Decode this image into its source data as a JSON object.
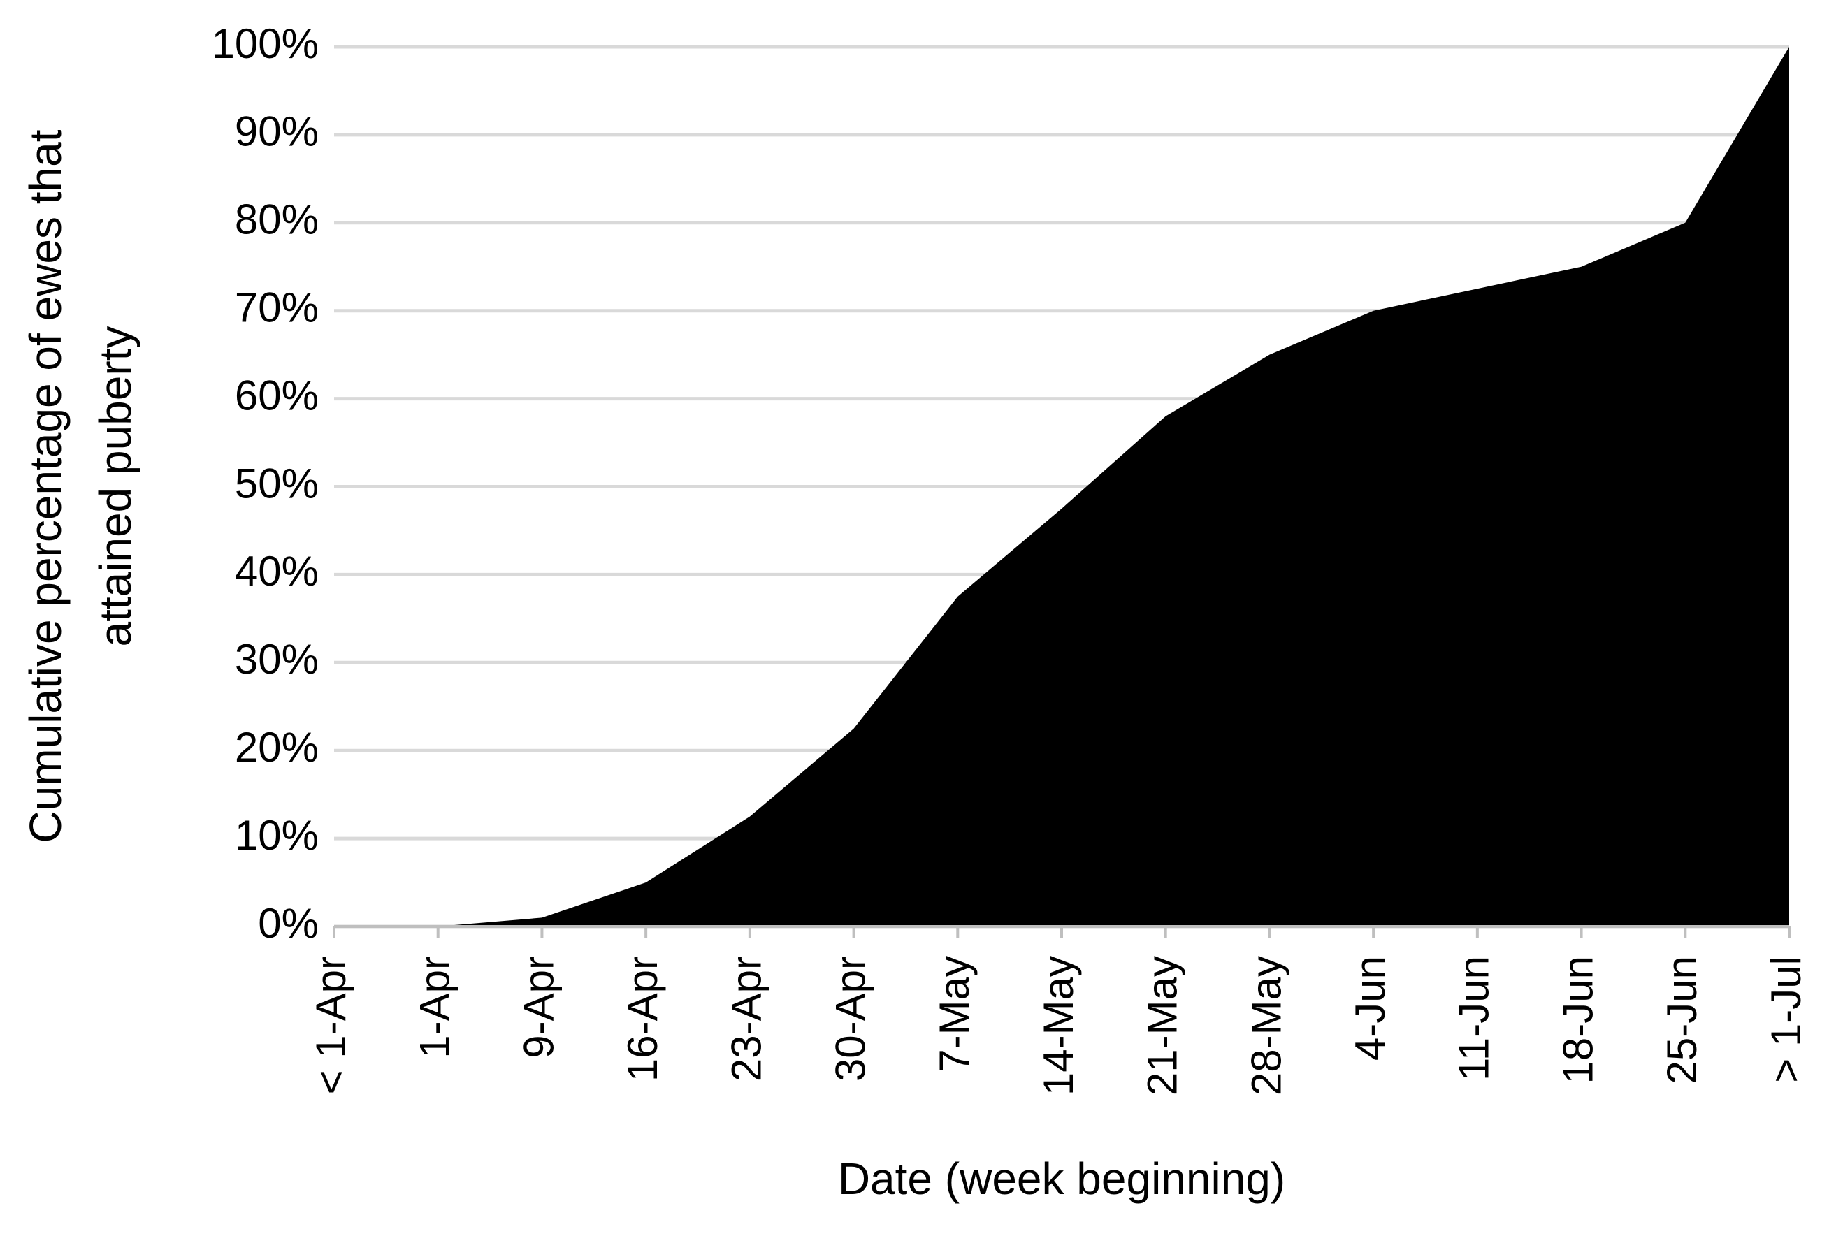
{
  "chart_data": {
    "type": "area",
    "x_label": "Date (week beginning)",
    "y_label": [
      "Cumulative percentage of ewes that",
      "attained puberty"
    ],
    "categories": [
      "< 1-Apr",
      "1-Apr",
      "9-Apr",
      "16-Apr",
      "23-Apr",
      "30-Apr",
      "7-May",
      "14-May",
      "21-May",
      "28-May",
      "4-Jun",
      "11-Jun",
      "18-Jun",
      "25-Jun",
      "> 1-Jul"
    ],
    "values": [
      0,
      0,
      1,
      5,
      12.5,
      22.5,
      37.5,
      47.5,
      58,
      65,
      70,
      72.5,
      75,
      80,
      100
    ],
    "color": "#000000",
    "ylim": [
      0,
      100
    ],
    "yticks": [
      {
        "value": 0,
        "label": "0%"
      },
      {
        "value": 10,
        "label": "10%"
      },
      {
        "value": 20,
        "label": "20%"
      },
      {
        "value": 30,
        "label": "30%"
      },
      {
        "value": 40,
        "label": "40%"
      },
      {
        "value": 50,
        "label": "50%"
      },
      {
        "value": 60,
        "label": "60%"
      },
      {
        "value": 70,
        "label": "70%"
      },
      {
        "value": 80,
        "label": "80%"
      },
      {
        "value": 90,
        "label": "90%"
      },
      {
        "value": 100,
        "label": "100%"
      }
    ],
    "grid": true
  }
}
